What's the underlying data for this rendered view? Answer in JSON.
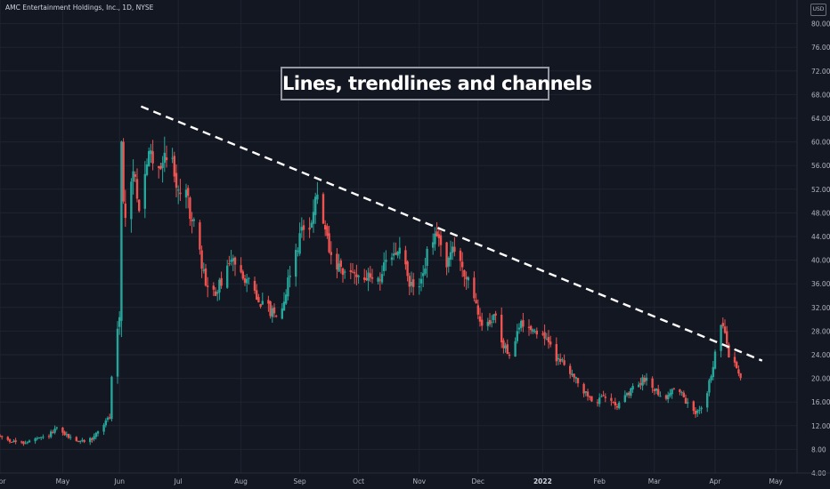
{
  "header": {
    "symbol": "AMC Entertainment Holdings, Inc., 1D, NYSE",
    "currency": "USD"
  },
  "annotation": {
    "title": "Lines, trendlines and channels"
  },
  "colors": {
    "background": "#131722",
    "grid": "#1f2430",
    "up": "#26a69a",
    "down": "#ef5350",
    "trendline": "#ffffff",
    "text": "#b2b5be"
  },
  "chart_data": {
    "type": "candlestick",
    "title": "Lines, trendlines and channels",
    "symbol": "AMC Entertainment Holdings, Inc.",
    "interval": "1D",
    "exchange": "NYSE",
    "currency": "USD",
    "grid": true,
    "y_axis": {
      "position": "right",
      "range": [
        4,
        84
      ],
      "ticks": [
        4,
        8,
        12,
        16,
        20,
        24,
        28,
        32,
        36,
        40,
        44,
        48,
        52,
        56,
        60,
        64,
        68,
        72,
        76,
        80
      ],
      "tick_labels": [
        "4.00",
        "8.00",
        "12.00",
        "16.00",
        "20.00",
        "24.00",
        "28.00",
        "32.00",
        "36.00",
        "40.00",
        "44.00",
        "48.00",
        "52.00",
        "56.00",
        "60.00",
        "64.00",
        "68.00",
        "72.00",
        "76.00",
        "80.00"
      ]
    },
    "x_axis": {
      "range": [
        "2021-04-01",
        "2022-05-05"
      ],
      "ticks": [
        {
          "date": "2021-04-01",
          "label": "Apr"
        },
        {
          "date": "2021-05-03",
          "label": "May"
        },
        {
          "date": "2021-06-01",
          "label": "Jun"
        },
        {
          "date": "2021-07-01",
          "label": "Jul"
        },
        {
          "date": "2021-08-02",
          "label": "Aug"
        },
        {
          "date": "2021-09-01",
          "label": "Sep"
        },
        {
          "date": "2021-10-01",
          "label": "Oct"
        },
        {
          "date": "2021-11-01",
          "label": "Nov"
        },
        {
          "date": "2021-12-01",
          "label": "Dec"
        },
        {
          "date": "2022-01-03",
          "label": "2022",
          "strong": true
        },
        {
          "date": "2022-02-01",
          "label": "Feb"
        },
        {
          "date": "2022-03-01",
          "label": "Mar"
        },
        {
          "date": "2022-04-01",
          "label": "Apr"
        },
        {
          "date": "2022-05-02",
          "label": "May"
        }
      ]
    },
    "trendline": {
      "style": "dashed",
      "from": {
        "date": "2021-06-12",
        "price": 66.0
      },
      "to": {
        "date": "2022-04-25",
        "price": 23.0
      }
    },
    "price_path": [
      [
        "2021-04-01",
        10.2
      ],
      [
        "2021-04-06",
        9.5
      ],
      [
        "2021-04-12",
        9.0
      ],
      [
        "2021-04-18",
        9.6
      ],
      [
        "2021-04-24",
        10.0
      ],
      [
        "2021-04-30",
        11.4
      ],
      [
        "2021-05-06",
        10.1
      ],
      [
        "2021-05-12",
        9.3
      ],
      [
        "2021-05-18",
        9.8
      ],
      [
        "2021-05-24",
        12.3
      ],
      [
        "2021-05-27",
        13.5
      ],
      [
        "2021-05-28",
        20.0
      ],
      [
        "2021-06-01",
        31.0
      ],
      [
        "2021-06-02",
        62.0
      ],
      [
        "2021-06-03",
        49.0
      ],
      [
        "2021-06-04",
        47.0
      ],
      [
        "2021-06-08",
        55.0
      ],
      [
        "2021-06-12",
        48.0
      ],
      [
        "2021-06-16",
        58.0
      ],
      [
        "2021-06-21",
        56.0
      ],
      [
        "2021-06-26",
        59.0
      ],
      [
        "2021-07-01",
        52.0
      ],
      [
        "2021-07-06",
        50.0
      ],
      [
        "2021-07-10",
        44.0
      ],
      [
        "2021-07-15",
        36.0
      ],
      [
        "2021-07-20",
        34.0
      ],
      [
        "2021-07-26",
        39.0
      ],
      [
        "2021-07-31",
        40.0
      ],
      [
        "2021-08-06",
        36.0
      ],
      [
        "2021-08-12",
        33.0
      ],
      [
        "2021-08-18",
        31.0
      ],
      [
        "2021-08-23",
        32.0
      ],
      [
        "2021-08-27",
        38.0
      ],
      [
        "2021-09-02",
        45.0
      ],
      [
        "2021-09-07",
        47.0
      ],
      [
        "2021-09-10",
        51.0
      ],
      [
        "2021-09-13",
        46.0
      ],
      [
        "2021-09-17",
        40.0
      ],
      [
        "2021-09-23",
        37.5
      ],
      [
        "2021-09-29",
        38.0
      ],
      [
        "2021-10-05",
        37.0
      ],
      [
        "2021-10-11",
        37.0
      ],
      [
        "2021-10-17",
        40.0
      ],
      [
        "2021-10-22",
        42.0
      ],
      [
        "2021-10-27",
        36.0
      ],
      [
        "2021-11-01",
        35.0
      ],
      [
        "2021-11-05",
        41.0
      ],
      [
        "2021-11-10",
        44.0
      ],
      [
        "2021-11-15",
        40.0
      ],
      [
        "2021-11-20",
        42.0
      ],
      [
        "2021-11-25",
        37.0
      ],
      [
        "2021-11-30",
        32.0
      ],
      [
        "2021-12-04",
        28.0
      ],
      [
        "2021-12-09",
        31.0
      ],
      [
        "2021-12-13",
        26.0
      ],
      [
        "2021-12-18",
        24.0
      ],
      [
        "2021-12-23",
        29.5
      ],
      [
        "2021-12-29",
        28.5
      ],
      [
        "2022-01-04",
        27.0
      ],
      [
        "2022-01-10",
        23.5
      ],
      [
        "2022-01-16",
        22.0
      ],
      [
        "2022-01-21",
        19.0
      ],
      [
        "2022-01-26",
        17.0
      ],
      [
        "2022-01-31",
        16.0
      ],
      [
        "2022-02-05",
        17.5
      ],
      [
        "2022-02-10",
        15.5
      ],
      [
        "2022-02-15",
        17.0
      ],
      [
        "2022-02-20",
        19.0
      ],
      [
        "2022-02-25",
        20.0
      ],
      [
        "2022-03-02",
        18.0
      ],
      [
        "2022-03-07",
        16.5
      ],
      [
        "2022-03-12",
        19.0
      ],
      [
        "2022-03-17",
        16.0
      ],
      [
        "2022-03-22",
        14.0
      ],
      [
        "2022-03-27",
        16.5
      ],
      [
        "2022-03-31",
        22.0
      ],
      [
        "2022-04-04",
        29.5
      ],
      [
        "2022-04-06",
        27.0
      ],
      [
        "2022-04-08",
        24.0
      ],
      [
        "2022-04-12",
        22.0
      ],
      [
        "2022-04-14",
        20.0
      ]
    ]
  }
}
